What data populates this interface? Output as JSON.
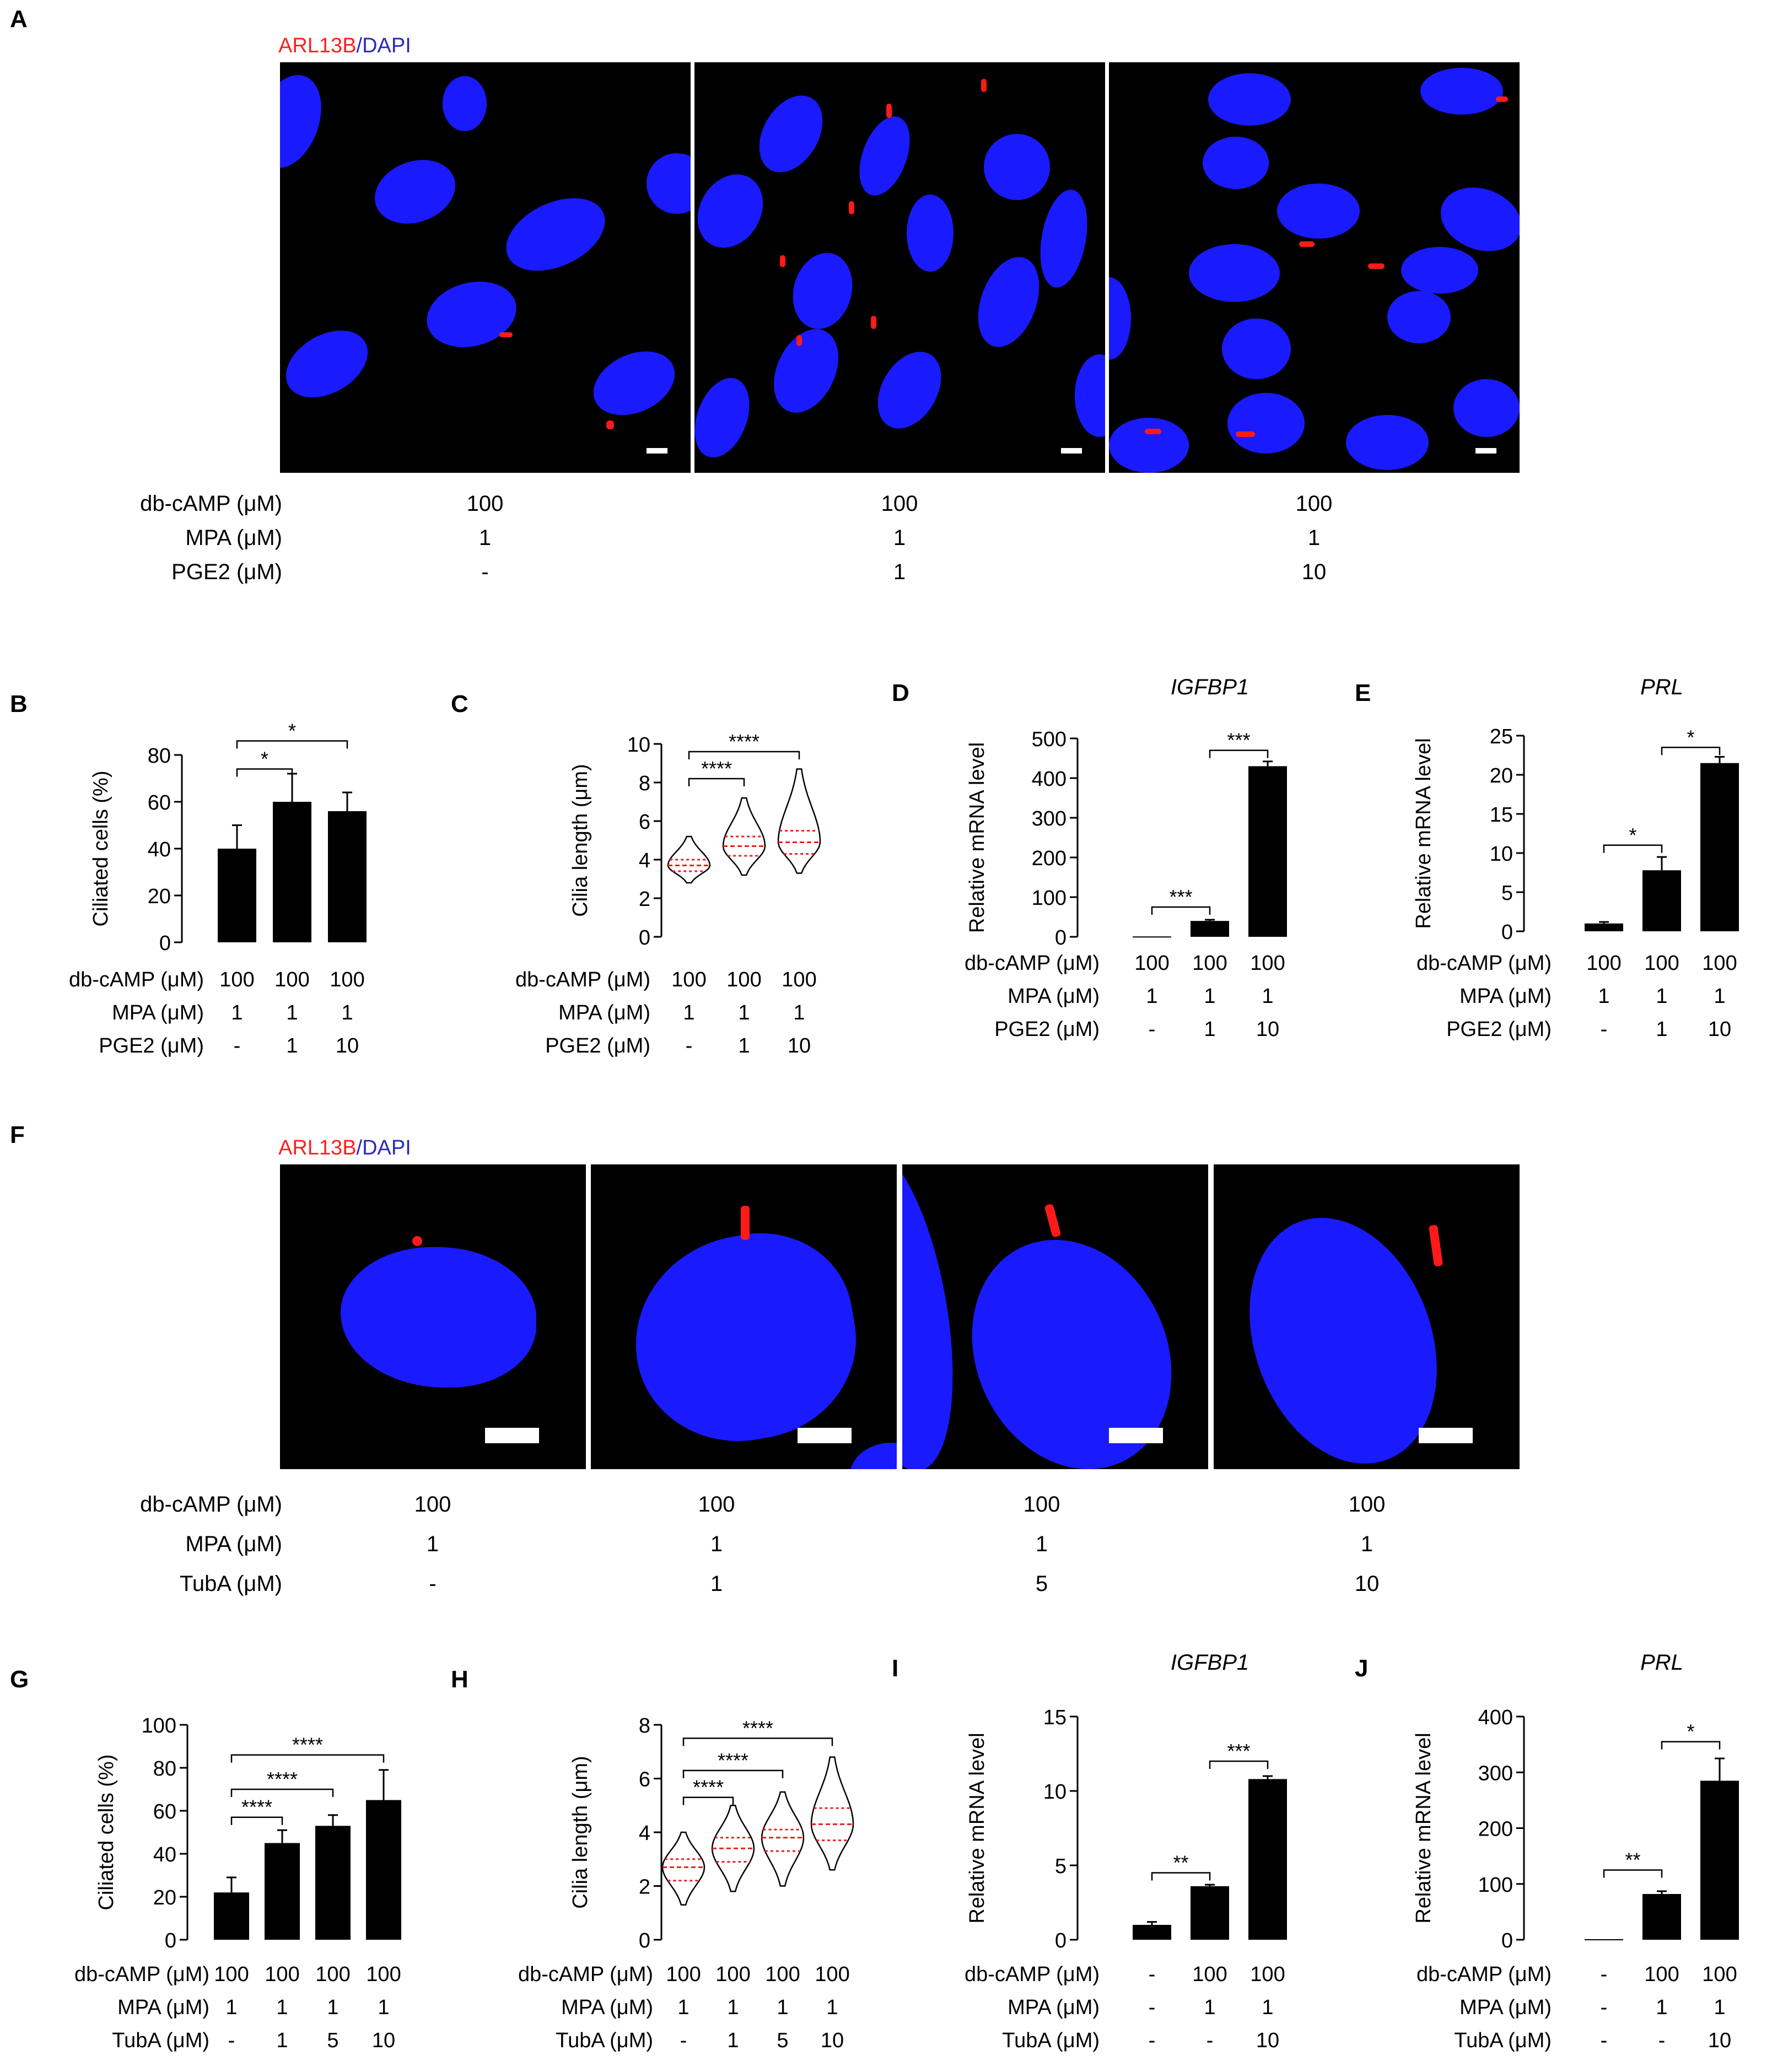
{
  "stain": {
    "red": "ARL13B",
    "sep": "/",
    "blue": "DAPI"
  },
  "panels": {
    "A": {
      "label": "A",
      "rows": [
        {
          "name": "db-cAMP (μM)",
          "vals": [
            "100",
            "100",
            "100"
          ]
        },
        {
          "name": "MPA (μM)",
          "vals": [
            "1",
            "1",
            "1"
          ]
        },
        {
          "name": "PGE2 (μM)",
          "vals": [
            "-",
            "1",
            "10"
          ]
        }
      ]
    },
    "F": {
      "label": "F",
      "rows": [
        {
          "name": "db-cAMP (μM)",
          "vals": [
            "100",
            "100",
            "100",
            "100"
          ]
        },
        {
          "name": "MPA (μM)",
          "vals": [
            "1",
            "1",
            "1",
            "1"
          ]
        },
        {
          "name": "TubA (μM)",
          "vals": [
            "-",
            "1",
            "5",
            "10"
          ]
        }
      ]
    }
  },
  "chart_data": [
    {
      "id": "B",
      "label": "B",
      "type": "bar",
      "ylabel": "Ciliated cells (%)",
      "title": "",
      "ylim": [
        0,
        80
      ],
      "yticks": [
        0,
        20,
        40,
        60,
        80
      ],
      "values": [
        40,
        60,
        56
      ],
      "errors": [
        10,
        12,
        8
      ],
      "sig": [
        {
          "from": 0,
          "to": 1,
          "text": "*",
          "y": 74
        },
        {
          "from": 0,
          "to": 2,
          "text": "*",
          "y": 86
        }
      ],
      "rows": [
        {
          "name": "db-cAMP (μM)",
          "vals": [
            "100",
            "100",
            "100"
          ]
        },
        {
          "name": "MPA (μM)",
          "vals": [
            "1",
            "1",
            "1"
          ]
        },
        {
          "name": "PGE2 (μM)",
          "vals": [
            "-",
            "1",
            "10"
          ]
        }
      ]
    },
    {
      "id": "C",
      "label": "C",
      "type": "violin",
      "ylabel": "Cilia length (μm)",
      "title": "",
      "ylim": [
        0,
        10
      ],
      "yticks": [
        0,
        2,
        4,
        6,
        8,
        10
      ],
      "violins": [
        {
          "min": 2.8,
          "q1": 3.4,
          "median": 3.7,
          "q3": 4.0,
          "max": 5.2
        },
        {
          "min": 3.2,
          "q1": 4.2,
          "median": 4.7,
          "q3": 5.2,
          "max": 7.2
        },
        {
          "min": 3.3,
          "q1": 4.3,
          "median": 4.9,
          "q3": 5.5,
          "max": 8.7
        }
      ],
      "sig": [
        {
          "from": 0,
          "to": 1,
          "text": "****",
          "y": 8.2
        },
        {
          "from": 0,
          "to": 2,
          "text": "****",
          "y": 9.6
        }
      ],
      "rows": [
        {
          "name": "db-cAMP (μM)",
          "vals": [
            "100",
            "100",
            "100"
          ]
        },
        {
          "name": "MPA (μM)",
          "vals": [
            "1",
            "1",
            "1"
          ]
        },
        {
          "name": "PGE2 (μM)",
          "vals": [
            "-",
            "1",
            "10"
          ]
        }
      ]
    },
    {
      "id": "D",
      "label": "D",
      "type": "bar",
      "ylabel": "Relative mRNA level",
      "title": "IGFBP1",
      "ylim": [
        0,
        500
      ],
      "yticks": [
        0,
        100,
        200,
        300,
        400,
        500
      ],
      "values": [
        1,
        40,
        430
      ],
      "errors": [
        0,
        3,
        12
      ],
      "sig": [
        {
          "from": 0,
          "to": 1,
          "text": "***",
          "y": 75
        },
        {
          "from": 1,
          "to": 2,
          "text": "***",
          "y": 470
        }
      ],
      "rows": [
        {
          "name": "db-cAMP (μM)",
          "vals": [
            "100",
            "100",
            "100"
          ]
        },
        {
          "name": "MPA (μM)",
          "vals": [
            "1",
            "1",
            "1"
          ]
        },
        {
          "name": "PGE2 (μM)",
          "vals": [
            "-",
            "1",
            "10"
          ]
        }
      ]
    },
    {
      "id": "E",
      "label": "E",
      "type": "bar",
      "ylabel": "Relative mRNA level",
      "title": "PRL",
      "ylim": [
        0,
        25
      ],
      "yticks": [
        0,
        5,
        10,
        15,
        20,
        25
      ],
      "values": [
        1,
        7.8,
        21.5
      ],
      "errors": [
        0.2,
        1.7,
        0.8
      ],
      "sig": [
        {
          "from": 0,
          "to": 1,
          "text": "*",
          "y": 11
        },
        {
          "from": 1,
          "to": 2,
          "text": "*",
          "y": 23.5
        }
      ],
      "rows": [
        {
          "name": "db-cAMP (μM)",
          "vals": [
            "100",
            "100",
            "100"
          ]
        },
        {
          "name": "MPA (μM)",
          "vals": [
            "1",
            "1",
            "1"
          ]
        },
        {
          "name": "PGE2 (μM)",
          "vals": [
            "-",
            "1",
            "10"
          ]
        }
      ]
    },
    {
      "id": "G",
      "label": "G",
      "type": "bar",
      "ylabel": "Ciliated cells (%)",
      "title": "",
      "ylim": [
        0,
        100
      ],
      "yticks": [
        0,
        20,
        40,
        60,
        80,
        100
      ],
      "values": [
        22,
        45,
        53,
        65
      ],
      "errors": [
        7,
        6,
        5,
        14
      ],
      "sig": [
        {
          "from": 0,
          "to": 1,
          "text": "****",
          "y": 57
        },
        {
          "from": 0,
          "to": 2,
          "text": "****",
          "y": 70
        },
        {
          "from": 0,
          "to": 3,
          "text": "****",
          "y": 86
        }
      ],
      "rows": [
        {
          "name": "db-cAMP (μM)",
          "vals": [
            "100",
            "100",
            "100",
            "100"
          ]
        },
        {
          "name": "MPA (μM)",
          "vals": [
            "1",
            "1",
            "1",
            "1"
          ]
        },
        {
          "name": "TubA (μM)",
          "vals": [
            "-",
            "1",
            "5",
            "10"
          ]
        }
      ]
    },
    {
      "id": "H",
      "label": "H",
      "type": "violin",
      "ylabel": "Cilia length (μm)",
      "title": "",
      "ylim": [
        0,
        8
      ],
      "yticks": [
        0,
        2,
        4,
        6,
        8
      ],
      "violins": [
        {
          "min": 1.3,
          "q1": 2.2,
          "median": 2.7,
          "q3": 3.0,
          "max": 4.0
        },
        {
          "min": 1.8,
          "q1": 2.9,
          "median": 3.4,
          "q3": 3.8,
          "max": 5.0
        },
        {
          "min": 2.0,
          "q1": 3.3,
          "median": 3.8,
          "q3": 4.1,
          "max": 5.5
        },
        {
          "min": 2.6,
          "q1": 3.7,
          "median": 4.3,
          "q3": 4.9,
          "max": 6.8
        }
      ],
      "sig": [
        {
          "from": 0,
          "to": 1,
          "text": "****",
          "y": 5.3
        },
        {
          "from": 0,
          "to": 2,
          "text": "****",
          "y": 6.3
        },
        {
          "from": 0,
          "to": 3,
          "text": "****",
          "y": 7.5
        }
      ],
      "rows": [
        {
          "name": "db-cAMP (μM)",
          "vals": [
            "100",
            "100",
            "100",
            "100"
          ]
        },
        {
          "name": "MPA (μM)",
          "vals": [
            "1",
            "1",
            "1",
            "1"
          ]
        },
        {
          "name": "TubA (μM)",
          "vals": [
            "-",
            "1",
            "5",
            "10"
          ]
        }
      ]
    },
    {
      "id": "I",
      "label": "I",
      "type": "bar",
      "ylabel": "Relative mRNA level",
      "title": "IGFBP1",
      "ylim": [
        0,
        15
      ],
      "yticks": [
        0,
        5,
        10,
        15
      ],
      "values": [
        1,
        3.6,
        10.8
      ],
      "errors": [
        0.2,
        0.1,
        0.2
      ],
      "sig": [
        {
          "from": 0,
          "to": 1,
          "text": "**",
          "y": 4.5
        },
        {
          "from": 1,
          "to": 2,
          "text": "***",
          "y": 12
        }
      ],
      "rows": [
        {
          "name": "db-cAMP (μM)",
          "vals": [
            "-",
            "100",
            "100"
          ]
        },
        {
          "name": "MPA (μM)",
          "vals": [
            "-",
            "1",
            "1"
          ]
        },
        {
          "name": "TubA (μM)",
          "vals": [
            "-",
            "-",
            "10"
          ]
        }
      ]
    },
    {
      "id": "J",
      "label": "J",
      "type": "bar",
      "ylabel": "Relative mRNA level",
      "title": "PRL",
      "ylim": [
        0,
        400
      ],
      "yticks": [
        0,
        100,
        200,
        300,
        400
      ],
      "values": [
        1,
        82,
        285
      ],
      "errors": [
        0,
        5,
        40
      ],
      "sig": [
        {
          "from": 0,
          "to": 1,
          "text": "**",
          "y": 125
        },
        {
          "from": 1,
          "to": 2,
          "text": "*",
          "y": 355
        }
      ],
      "rows": [
        {
          "name": "db-cAMP (μM)",
          "vals": [
            "-",
            "100",
            "100"
          ]
        },
        {
          "name": "MPA (μM)",
          "vals": [
            "-",
            "1",
            "1"
          ]
        },
        {
          "name": "TubA (μM)",
          "vals": [
            "-",
            "-",
            "10"
          ]
        }
      ]
    }
  ]
}
